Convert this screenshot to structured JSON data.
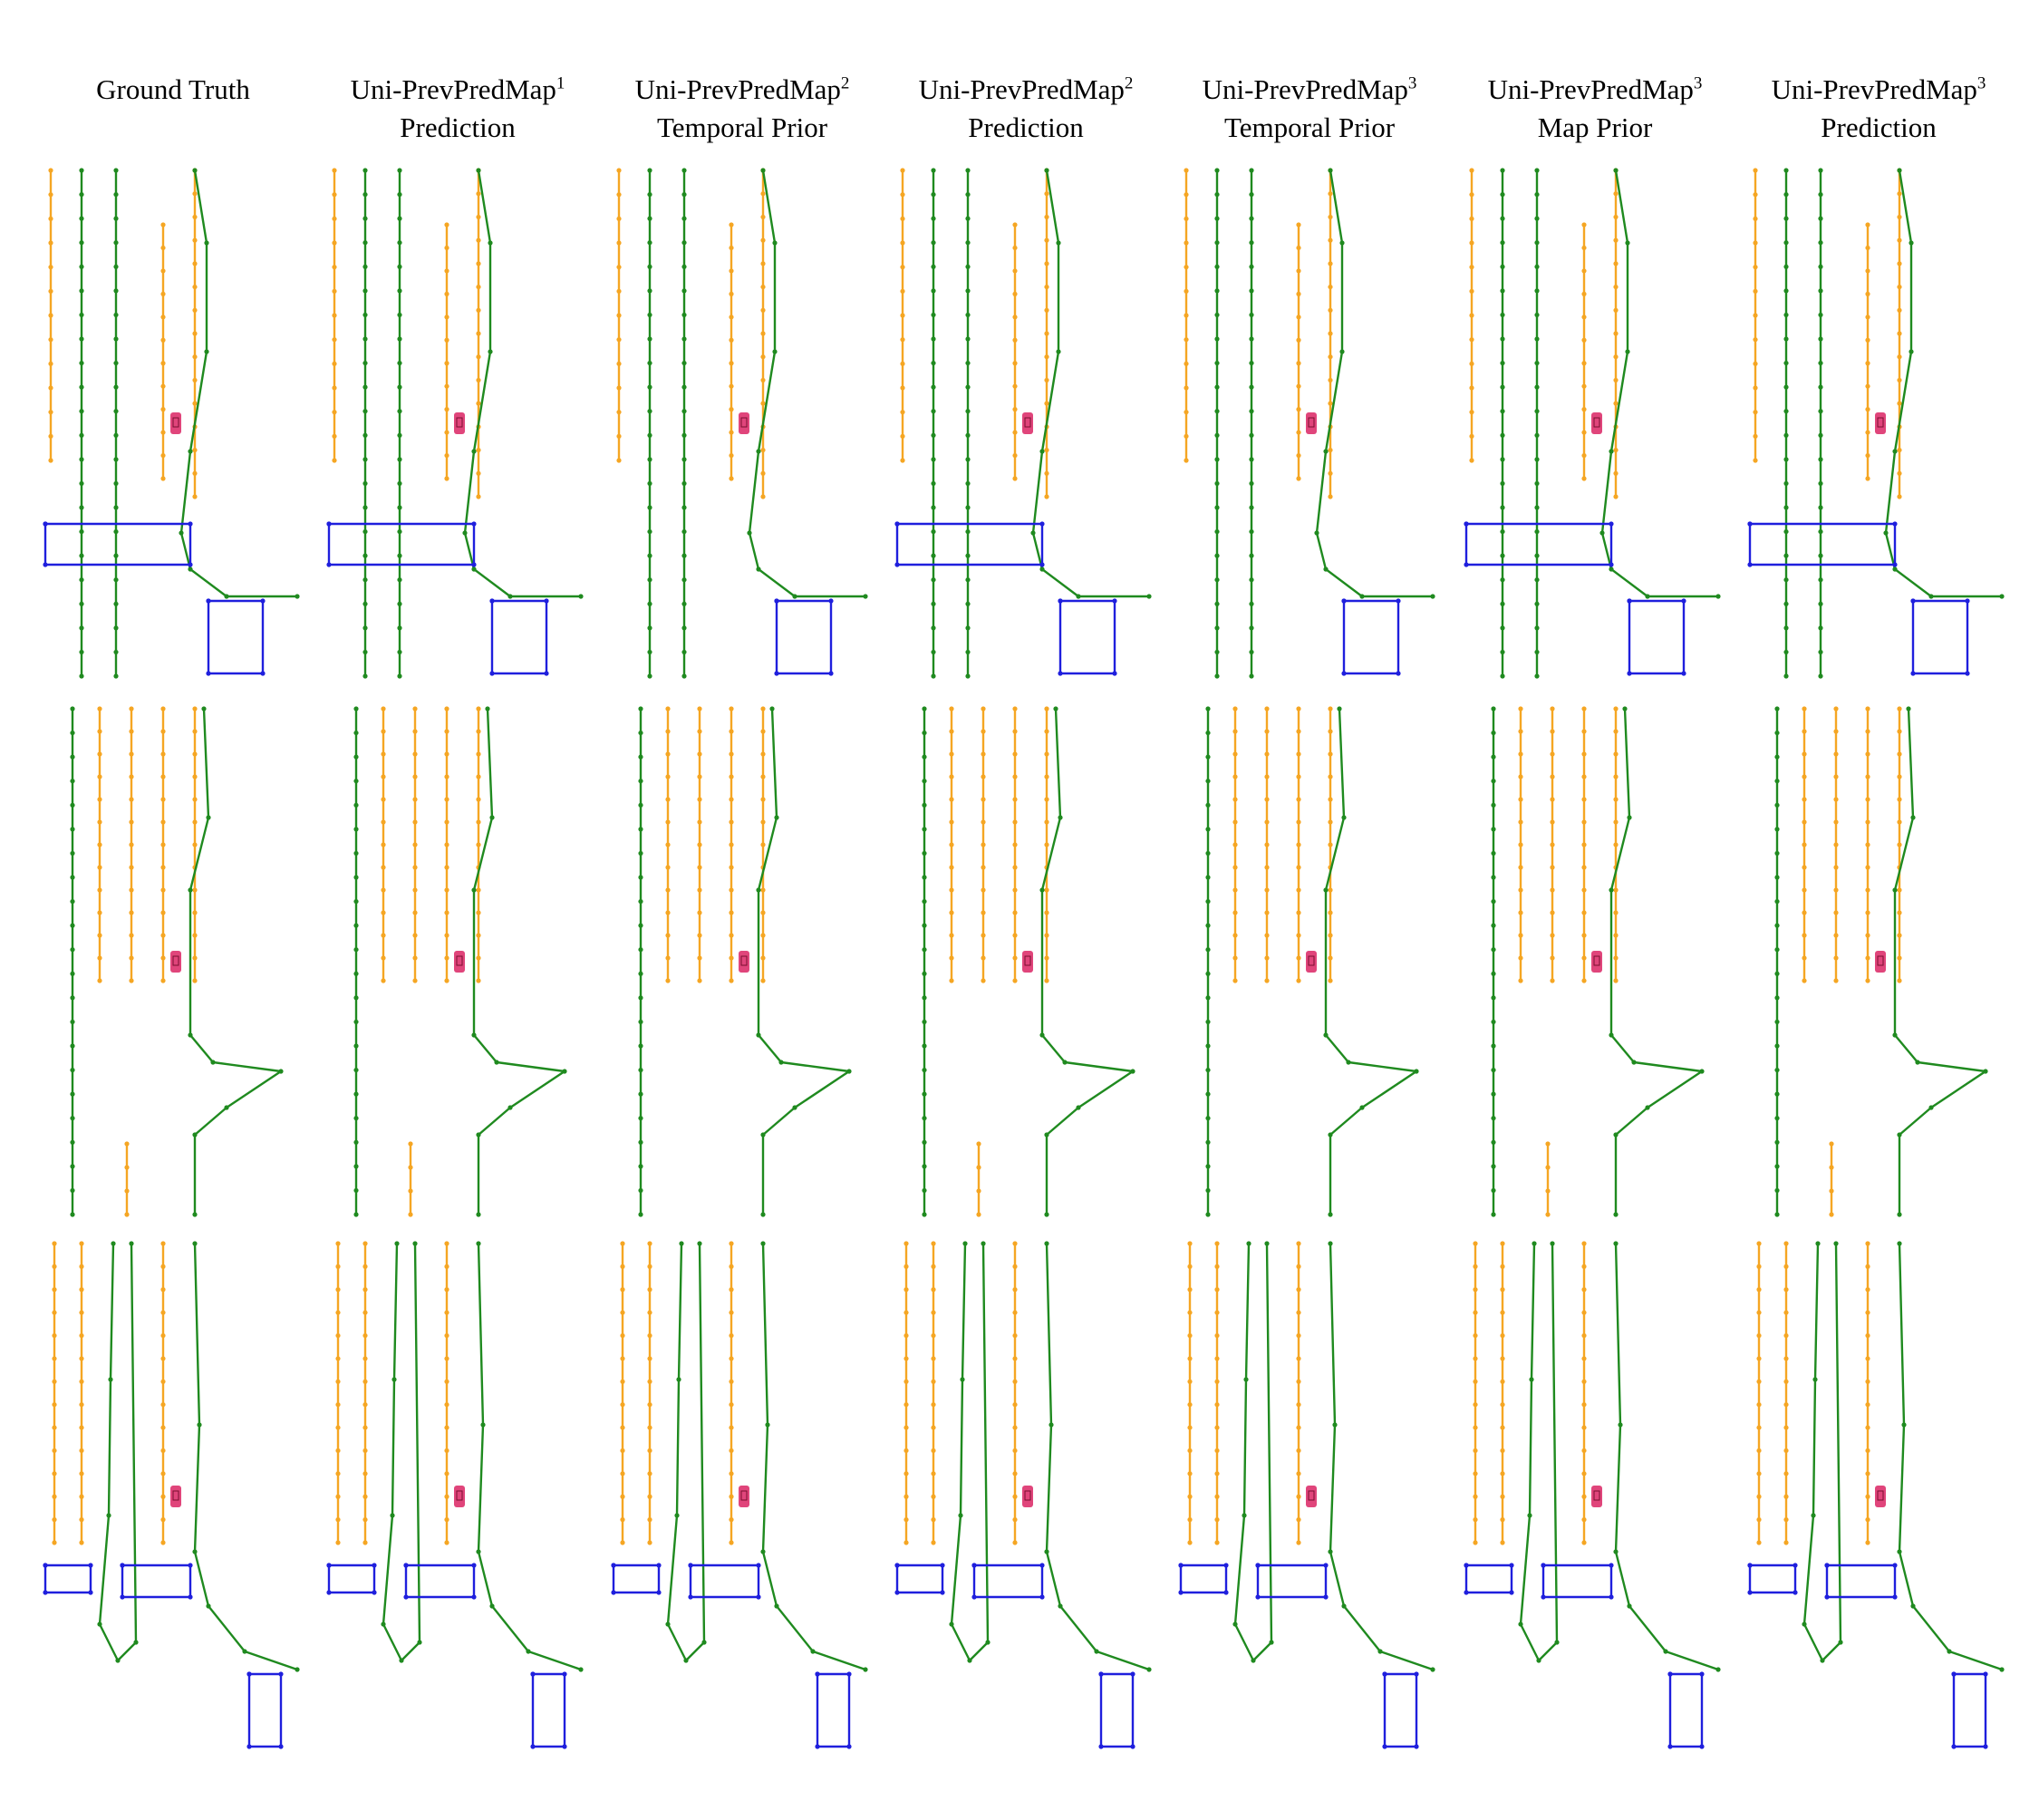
{
  "figure": {
    "columns": [
      {
        "name": "Ground Truth",
        "sup": "",
        "line2": ""
      },
      {
        "name": "Uni-PrevPredMap",
        "sup": "1",
        "line2": "Prediction"
      },
      {
        "name": "Uni-PrevPredMap",
        "sup": "2",
        "line2": "Temporal Prior"
      },
      {
        "name": "Uni-PrevPredMap",
        "sup": "2",
        "line2": "Prediction"
      },
      {
        "name": "Uni-PrevPredMap",
        "sup": "3",
        "line2": "Temporal Prior"
      },
      {
        "name": "Uni-PrevPredMap",
        "sup": "3",
        "line2": "Map Prior"
      },
      {
        "name": "Uni-PrevPredMap",
        "sup": "3",
        "line2": "Prediction"
      }
    ],
    "rows": 3,
    "colors": {
      "divider": "#f5a623",
      "boundary": "#1f8a1f",
      "ped_crossing": "#1f1fdd",
      "ego_vehicle": "#e0457b"
    }
  }
}
